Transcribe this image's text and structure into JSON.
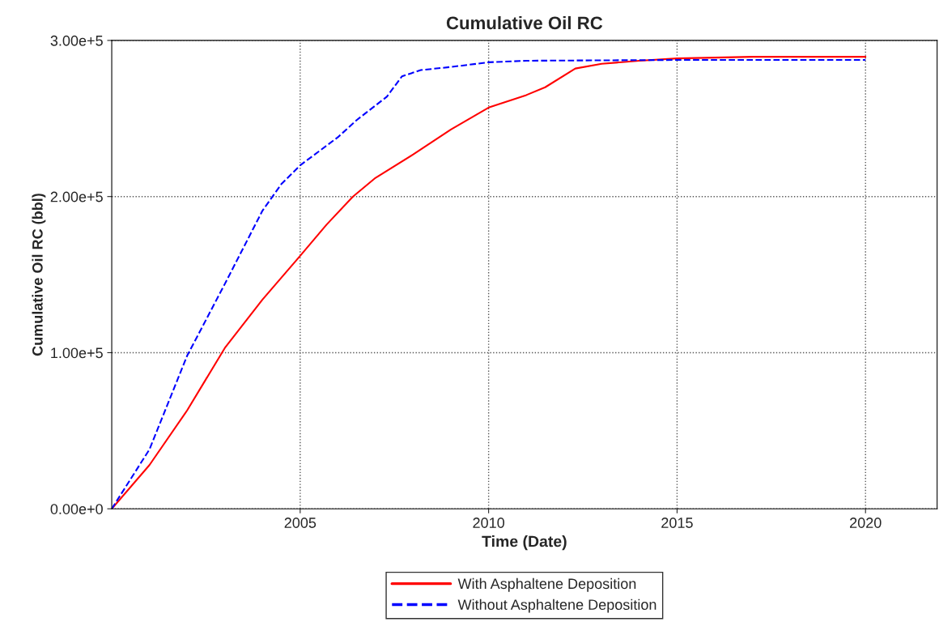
{
  "chart_data": {
    "type": "line",
    "title": "Cumulative Oil RC",
    "xlabel": "Time (Date)",
    "ylabel": "Cumulative Oil RC (bbl)",
    "xlim": [
      2000,
      2021.9
    ],
    "xticks": [
      2005,
      2010,
      2015,
      2020
    ],
    "ylim": [
      0,
      300000
    ],
    "yticks": [
      {
        "value": 0,
        "label": "0.00e+0"
      },
      {
        "value": 100000,
        "label": "1.00e+5"
      },
      {
        "value": 200000,
        "label": "2.00e+5"
      },
      {
        "value": 300000,
        "label": "3.00e+5"
      }
    ],
    "grid": true,
    "legend": "bottom",
    "series": [
      {
        "name": "With Asphaltene Deposition",
        "color": "#ff0000",
        "line_style": "solid",
        "x": [
          2000,
          2001,
          2002,
          2003,
          2004,
          2005,
          2005.7,
          2006.4,
          2007,
          2008,
          2009,
          2010,
          2011,
          2011.5,
          2012.3,
          2013,
          2014,
          2015,
          2017,
          2020
        ],
        "values": [
          0,
          28000,
          63000,
          103000,
          134000,
          162000,
          182000,
          200000,
          212000,
          227000,
          243000,
          257000,
          265000,
          270000,
          282000,
          285000,
          287000,
          288500,
          289500,
          289500
        ]
      },
      {
        "name": "Without Asphaltene Deposition",
        "color": "#0000ff",
        "line_style": "dashed",
        "x": [
          2000,
          2001,
          2002,
          2003,
          2004,
          2004.5,
          2005,
          2006,
          2006.5,
          2007.3,
          2007.7,
          2008.2,
          2009,
          2010,
          2011,
          2015,
          2020
        ],
        "values": [
          0,
          38000,
          98000,
          144000,
          191000,
          208000,
          220000,
          238000,
          249000,
          264000,
          277000,
          281000,
          283000,
          286000,
          287000,
          287500,
          287500
        ]
      }
    ]
  }
}
